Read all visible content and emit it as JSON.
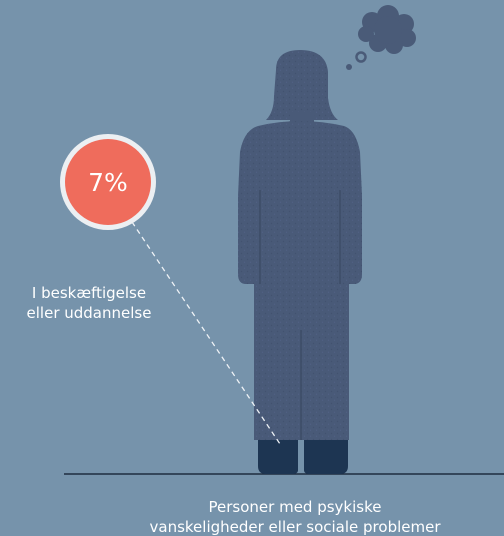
{
  "stat": {
    "value": "7%",
    "label_line1": "I beskæftigelse",
    "label_line2": "eller uddannelse"
  },
  "caption": {
    "line1": "Personer med psykiske",
    "line2": "vanskeligheder eller sociale problemer"
  },
  "colors": {
    "background": "#7693ab",
    "figure": "#495a78",
    "shoes": "#1d3552",
    "badge_fill": "#ef6c5c",
    "badge_ring": "#eceff2",
    "ground_line": "#1e2c40"
  },
  "icons": {
    "figure": "person-silhouette",
    "thought": "thought-bubble-icon"
  }
}
